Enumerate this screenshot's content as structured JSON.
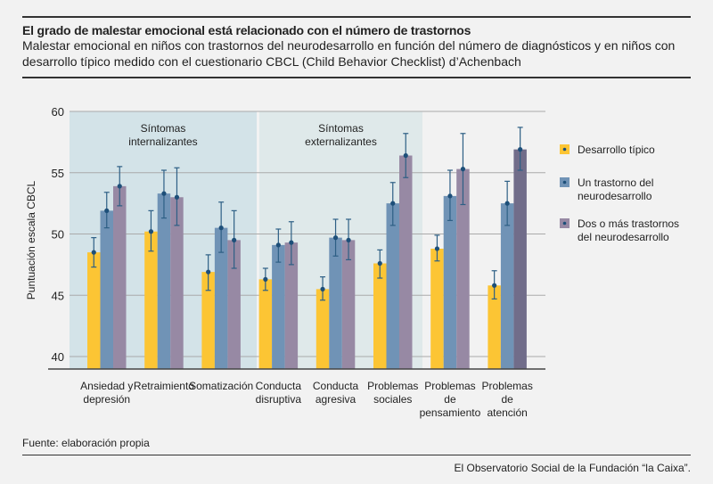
{
  "header": {
    "title": "El grado de malestar emocional está relacionado con el número de trastornos",
    "subtitle": "Malestar emocional en niños con trastornos del neurodesarrollo en función del número de diagnósticos y en niños con desarrollo típico medido con el cuestionario CBCL (Child Behavior Checklist) d’Achenbach"
  },
  "footer": {
    "source": "Fuente: elaboración propia",
    "credit": "El Observatorio Social de la Fundación “la Caixa”."
  },
  "chart_data": {
    "type": "bar",
    "ylabel": "Puntuación escala CBCL",
    "ylim": [
      39,
      60
    ],
    "yticks": [
      40,
      45,
      50,
      55,
      60
    ],
    "grid": true,
    "legend_position": "right",
    "categories": [
      [
        "Ansiedad y",
        "depresión"
      ],
      [
        "Retraimiento"
      ],
      [
        "Somatización"
      ],
      [
        "Conducta",
        "disruptiva"
      ],
      [
        "Conducta",
        "agresiva"
      ],
      [
        "Problemas",
        "sociales"
      ],
      [
        "Problemas",
        "de",
        "pensamiento"
      ],
      [
        "Problemas",
        "de",
        "atención"
      ]
    ],
    "groups": [
      {
        "label": [
          "Síntomas",
          "internalizantes"
        ],
        "categories": [
          0,
          1,
          2
        ],
        "color": "#d3e3e8"
      },
      {
        "label": [
          "Síntomas",
          "externalizantes"
        ],
        "categories": [
          3,
          4,
          5
        ],
        "color": "#dfe9ea"
      }
    ],
    "series": [
      {
        "name": "Desarrollo típico",
        "color": "#fcc534",
        "values": [
          48.5,
          50.2,
          46.9,
          46.3,
          45.5,
          47.6,
          48.8,
          45.8
        ],
        "err_low": [
          47.3,
          48.6,
          45.4,
          45.4,
          44.6,
          46.4,
          47.8,
          44.7
        ],
        "err_high": [
          49.7,
          51.9,
          48.3,
          47.2,
          46.5,
          48.7,
          49.9,
          47.0
        ]
      },
      {
        "name": "Un trastorno del neurodesarrollo",
        "color": "#7093b6",
        "values": [
          51.9,
          53.3,
          50.5,
          49.1,
          49.7,
          52.5,
          53.1,
          52.5
        ],
        "err_low": [
          50.5,
          51.3,
          48.5,
          47.7,
          48.2,
          50.7,
          51.1,
          50.7
        ],
        "err_high": [
          53.4,
          55.2,
          52.6,
          50.4,
          51.2,
          54.2,
          55.2,
          54.3
        ]
      },
      {
        "name": "Dos o más trastornos del neurodesarrollo",
        "color": "#9789a4",
        "values": [
          53.9,
          53.0,
          49.5,
          49.3,
          49.5,
          56.4,
          55.3,
          56.9
        ],
        "err_low": [
          52.3,
          50.7,
          47.2,
          47.5,
          47.9,
          54.6,
          52.4,
          55.2
        ],
        "err_high": [
          55.5,
          55.4,
          51.9,
          51.0,
          51.2,
          58.2,
          58.2,
          58.7
        ]
      }
    ],
    "legend": [
      [
        "Desarrollo típico"
      ],
      [
        "Un trastorno del",
        "neurodesarrollo"
      ],
      [
        "Dos o más trastornos",
        "del neurodesarrollo"
      ]
    ],
    "highlight_color": "#716d8a",
    "marker_color": "#1d4f79"
  }
}
